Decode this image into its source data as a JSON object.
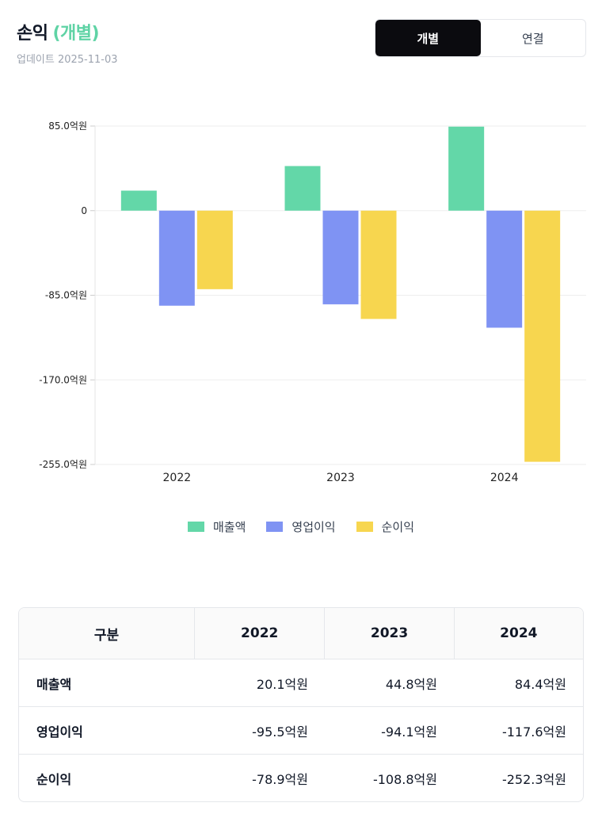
{
  "header": {
    "title": "손익",
    "subtitle": "(개별)",
    "updated": "업데이트 2025-11-03"
  },
  "toggle": {
    "options": [
      "개별",
      "연결"
    ],
    "selected": "개별"
  },
  "colors": {
    "revenue": "#63d7a8",
    "operating": "#7f93f3",
    "net": "#f7d64f",
    "accent": "#5fd3a5"
  },
  "chart_data": {
    "type": "bar",
    "categories": [
      "2022",
      "2023",
      "2024"
    ],
    "series": [
      {
        "name": "매출액",
        "values": [
          20.1,
          44.8,
          84.4
        ]
      },
      {
        "name": "영업이익",
        "values": [
          -95.5,
          -94.1,
          -117.6
        ]
      },
      {
        "name": "순이익",
        "values": [
          -78.9,
          -108.8,
          -252.3
        ]
      }
    ],
    "yticks": [
      85.0,
      0,
      -85.0,
      -170.0,
      -255.0
    ],
    "ytick_labels": [
      "85.0억원",
      "0",
      "-85.0억원",
      "-170.0억원",
      "-255.0억원"
    ],
    "ylim": [
      -255,
      85
    ],
    "legend_position": "bottom",
    "grid": true
  },
  "table": {
    "header": [
      "구분",
      "2022",
      "2023",
      "2024"
    ],
    "rows": [
      {
        "label": "매출액",
        "values": [
          "20.1억원",
          "44.8억원",
          "84.4억원"
        ]
      },
      {
        "label": "영업이익",
        "values": [
          "-95.5억원",
          "-94.1억원",
          "-117.6억원"
        ]
      },
      {
        "label": "순이익",
        "values": [
          "-78.9억원",
          "-108.8억원",
          "-252.3억원"
        ]
      }
    ]
  }
}
